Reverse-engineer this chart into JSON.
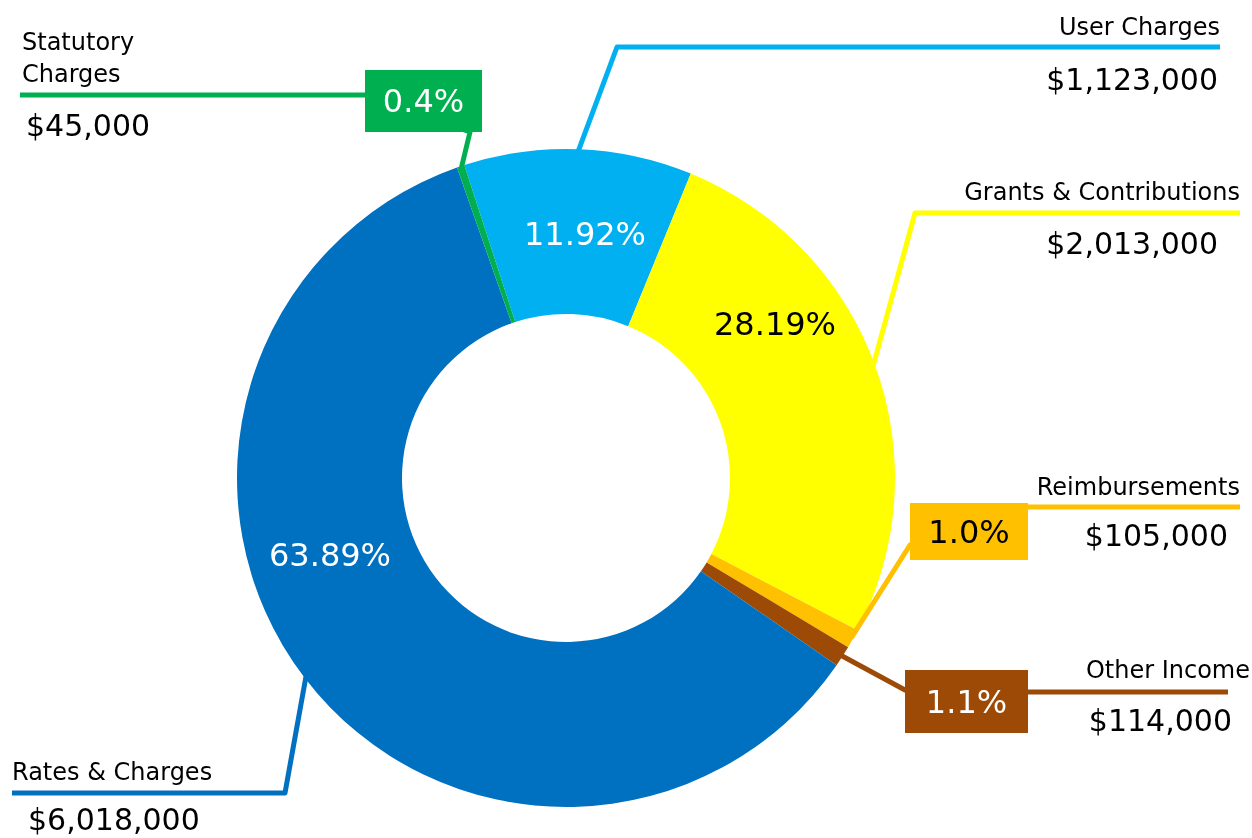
{
  "chart_data": {
    "type": "donut",
    "categories": [
      "User Charges",
      "Grants & Contributions",
      "Reimbursements",
      "Other Income",
      "Rates & Charges",
      "Statutory Charges"
    ],
    "values": [
      11.92,
      28.19,
      1.0,
      1.1,
      63.89,
      0.4
    ],
    "value_labels": [
      "11.92%",
      "28.19%",
      "1.0%",
      "1.1%",
      "63.89%",
      "0.4%"
    ],
    "annotations": [
      "$1,123,000",
      "$2,013,000",
      "$105,000",
      "$114,000",
      "$6,018,000",
      "$45,000"
    ],
    "colors": [
      "#00b0f0",
      "#ffff00",
      "#ffc000",
      "#9c4a06",
      "#0070c0",
      "#00b050"
    ]
  }
}
